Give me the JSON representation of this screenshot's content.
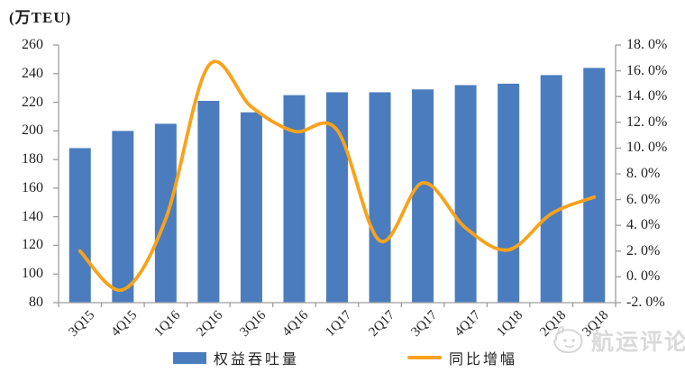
{
  "chart_data": {
    "type": "bar+line",
    "categories": [
      "3Q15",
      "4Q15",
      "1Q16",
      "2Q16",
      "3Q16",
      "4Q16",
      "1Q17",
      "2Q17",
      "3Q17",
      "4Q17",
      "1Q18",
      "2Q18",
      "3Q18"
    ],
    "series": [
      {
        "name": "权益吞吐量",
        "type": "bar",
        "axis": "left",
        "values": [
          188,
          200,
          205,
          221,
          213,
          225,
          227,
          227,
          229,
          232,
          233,
          239,
          244
        ]
      },
      {
        "name": "同比增幅",
        "type": "line",
        "axis": "right",
        "values": [
          2.0,
          -1.0,
          4.5,
          16.4,
          13.2,
          11.3,
          11.4,
          2.8,
          7.3,
          3.8,
          2.1,
          4.9,
          6.2
        ]
      }
    ],
    "left_axis": {
      "title": "(万TEU)",
      "min": 80,
      "max": 260,
      "step": 20,
      "tick_labels": [
        "80",
        "100",
        "120",
        "140",
        "160",
        "180",
        "200",
        "220",
        "240",
        "260"
      ]
    },
    "right_axis": {
      "min": -2,
      "max": 18,
      "step": 2,
      "tick_labels": [
        "-2. 0%",
        "0. 0%",
        "2. 0%",
        "4. 0%",
        "6. 0%",
        "8. 0%",
        "10. 0%",
        "12. 0%",
        "14. 0%",
        "16. 0%",
        "18. 0%"
      ]
    },
    "legend": {
      "position": "bottom",
      "items": [
        {
          "label": "权益吞吐量",
          "marker": "bar-swatch"
        },
        {
          "label": "同比增幅",
          "marker": "line-swatch"
        }
      ]
    },
    "grid": false,
    "smooth_line": true
  },
  "watermark": {
    "text": "航运评论",
    "icon": "mascot-logo-icon"
  },
  "colors": {
    "bar": "#4B7DBE",
    "line": "#F9A21A",
    "axis": "#9e9e9e",
    "label": "#1f1f1f",
    "watermark": "#dadada"
  }
}
